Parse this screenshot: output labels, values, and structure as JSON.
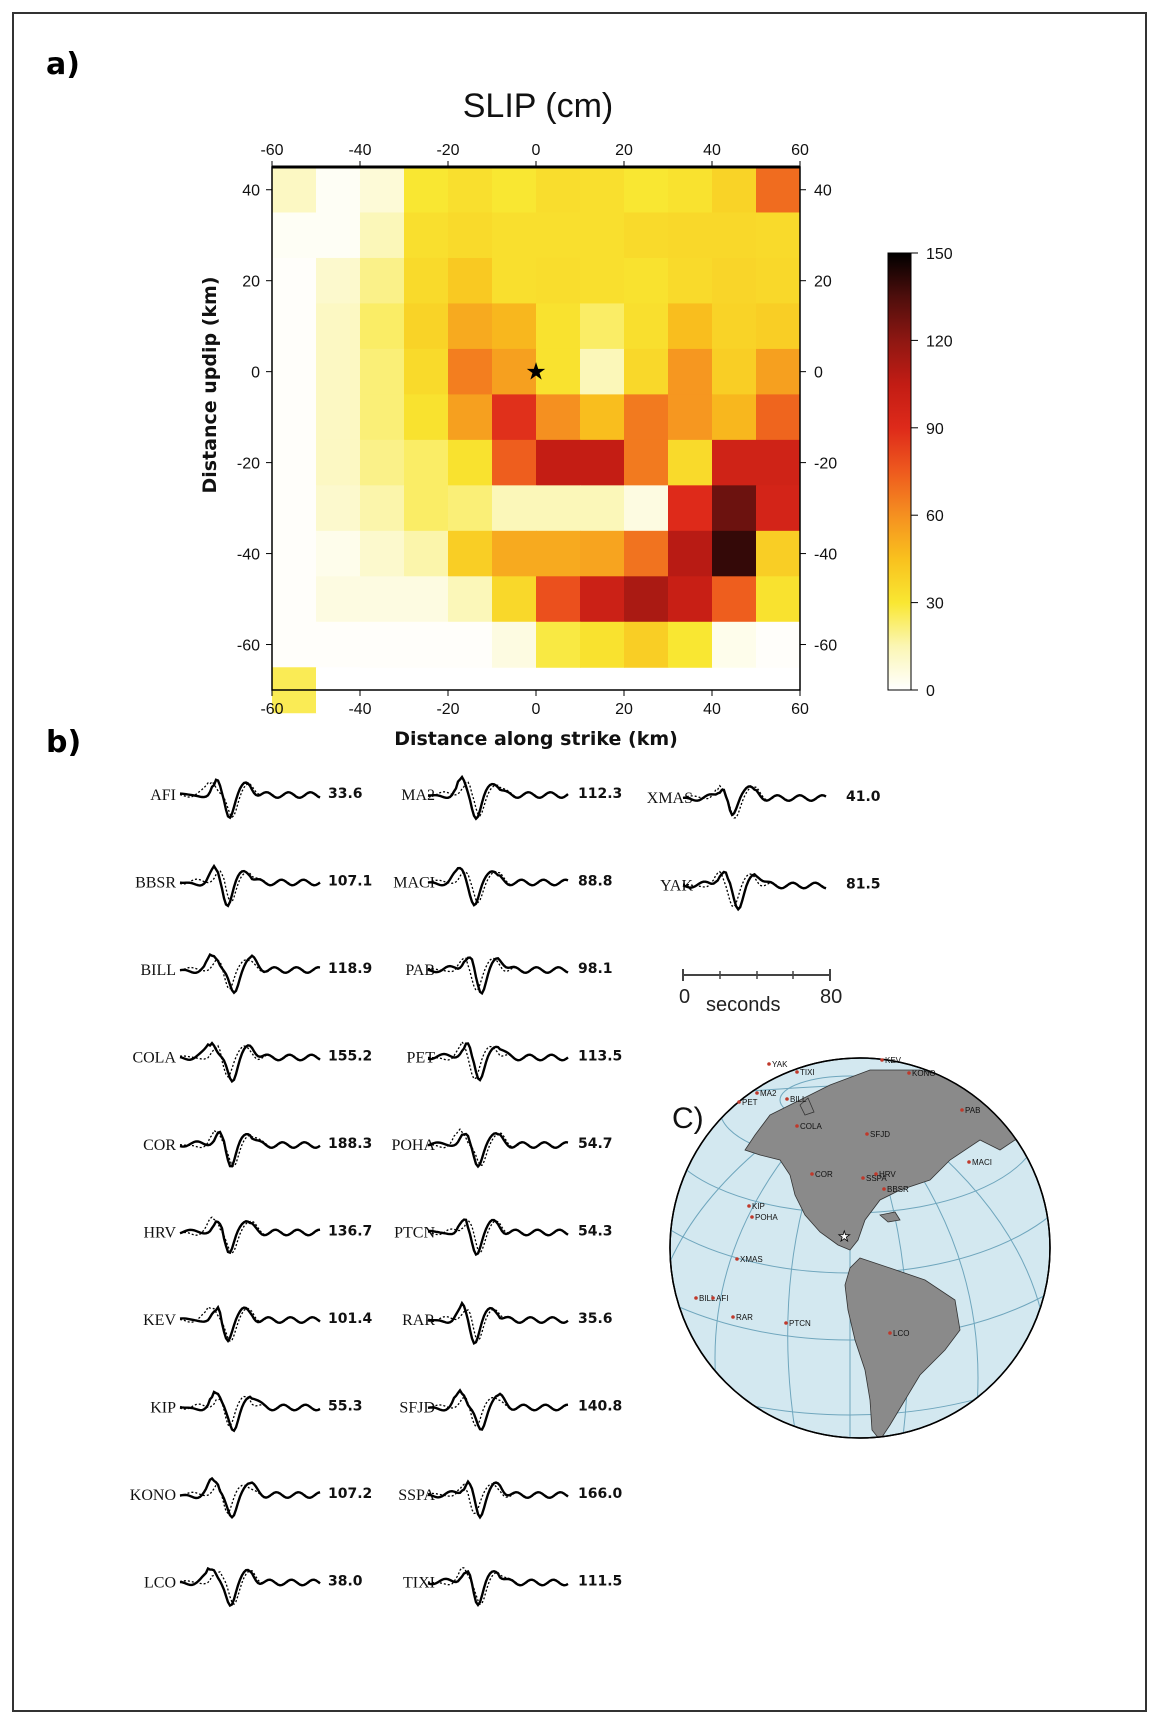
{
  "panel_a": {
    "label": "a)",
    "chart_data": {
      "type": "heatmap",
      "title": "SLIP (cm)",
      "xlabel": "Distance along strike (km)",
      "ylabel": "Distance updip (km)",
      "xlim": [
        -60,
        60
      ],
      "ylim": [
        -70,
        45
      ],
      "x_ticks": [
        "-60",
        "-40",
        "-20",
        "0",
        "20",
        "40",
        "60"
      ],
      "x_tick_values": [
        -60,
        -40,
        -20,
        0,
        20,
        40,
        60
      ],
      "y_ticks": [
        "40",
        "20",
        "0",
        "-20",
        "-40",
        "-60"
      ],
      "y_tick_values": [
        40,
        20,
        0,
        -20,
        -40,
        -60
      ],
      "cell_width_km": 10,
      "cell_height_km": 10,
      "x_edges_start": -60,
      "row_top_edges": [
        45,
        35,
        25,
        15,
        5,
        -5,
        -15,
        -25,
        -35,
        -45,
        -55,
        -65
      ],
      "slip_cm": [
        [
          12,
          2,
          8,
          30,
          33,
          30,
          34,
          33,
          30,
          32,
          38,
          70
        ],
        [
          2,
          2,
          14,
          33,
          35,
          33,
          33,
          33,
          35,
          36,
          36,
          35
        ],
        [
          1,
          10,
          20,
          35,
          42,
          33,
          34,
          33,
          32,
          35,
          37,
          36
        ],
        [
          1,
          12,
          24,
          38,
          52,
          48,
          32,
          24,
          33,
          46,
          38,
          40
        ],
        [
          1,
          12,
          22,
          35,
          65,
          55,
          32,
          14,
          36,
          58,
          40,
          55
        ],
        [
          1,
          12,
          22,
          32,
          55,
          88,
          60,
          46,
          66,
          58,
          48,
          72
        ],
        [
          1,
          12,
          20,
          24,
          32,
          74,
          104,
          104,
          66,
          35,
          98,
          98
        ],
        [
          1,
          10,
          16,
          24,
          22,
          14,
          14,
          14,
          6,
          90,
          128,
          96
        ],
        [
          1,
          4,
          10,
          16,
          40,
          52,
          52,
          54,
          68,
          108,
          140,
          40
        ],
        [
          1,
          6,
          6,
          6,
          14,
          36,
          78,
          100,
          112,
          102,
          74,
          32
        ],
        [
          1,
          1,
          1,
          1,
          1,
          6,
          28,
          32,
          40,
          30,
          4,
          1
        ],
        [
          26,
          0,
          null,
          null,
          null,
          null,
          null,
          null,
          null,
          null,
          null,
          null
        ]
      ],
      "hypocenter": {
        "x": 0,
        "y": 0,
        "marker": "star"
      },
      "colorbar": {
        "min": 0,
        "max": 150,
        "ticks": [
          "150",
          "120",
          "90",
          "60",
          "30",
          "0"
        ],
        "tick_values": [
          150,
          120,
          90,
          60,
          30,
          0
        ]
      }
    }
  },
  "panel_b": {
    "label": "b)",
    "timescale": {
      "start_label": "0",
      "unit_label": "seconds",
      "end_label": "80"
    },
    "stations_col1": [
      {
        "name": "AFI",
        "value": "33.6"
      },
      {
        "name": "BBSR",
        "value": "107.1"
      },
      {
        "name": "BILL",
        "value": "118.9"
      },
      {
        "name": "COLA",
        "value": "155.2"
      },
      {
        "name": "COR",
        "value": "188.3"
      },
      {
        "name": "HRV",
        "value": "136.7"
      },
      {
        "name": "KEV",
        "value": "101.4"
      },
      {
        "name": "KIP",
        "value": "55.3"
      },
      {
        "name": "KONO",
        "value": "107.2"
      },
      {
        "name": "LCO",
        "value": "38.0"
      }
    ],
    "stations_col2": [
      {
        "name": "MA2",
        "value": "112.3"
      },
      {
        "name": "MACI",
        "value": "88.8"
      },
      {
        "name": "PAB",
        "value": "98.1"
      },
      {
        "name": "PET",
        "value": "113.5"
      },
      {
        "name": "POHA",
        "value": "54.7"
      },
      {
        "name": "PTCN",
        "value": "54.3"
      },
      {
        "name": "RAR",
        "value": "35.6"
      },
      {
        "name": "SFJD",
        "value": "140.8"
      },
      {
        "name": "SSPA",
        "value": "166.0"
      },
      {
        "name": "TIXI",
        "value": "111.5"
      }
    ],
    "stations_col3": [
      {
        "name": "XMAS",
        "value": "41.0"
      },
      {
        "name": "YAK",
        "value": "81.5"
      }
    ]
  },
  "panel_c": {
    "label": "C)",
    "map_labels": [
      "YAK",
      "TIXI",
      "KEV",
      "KONO",
      "MA2",
      "BILL",
      "PET",
      "PAB",
      "COLA",
      "SFJD",
      "MACI",
      "COR",
      "SSPA",
      "HRV",
      "BBSR",
      "KIP",
      "POHA",
      "XMAS",
      "BILL",
      "AFI",
      "RAR",
      "PTCN",
      "LCO"
    ],
    "colors": {
      "ocean": "#d3e8f0",
      "land": "#8a8a8a"
    }
  }
}
